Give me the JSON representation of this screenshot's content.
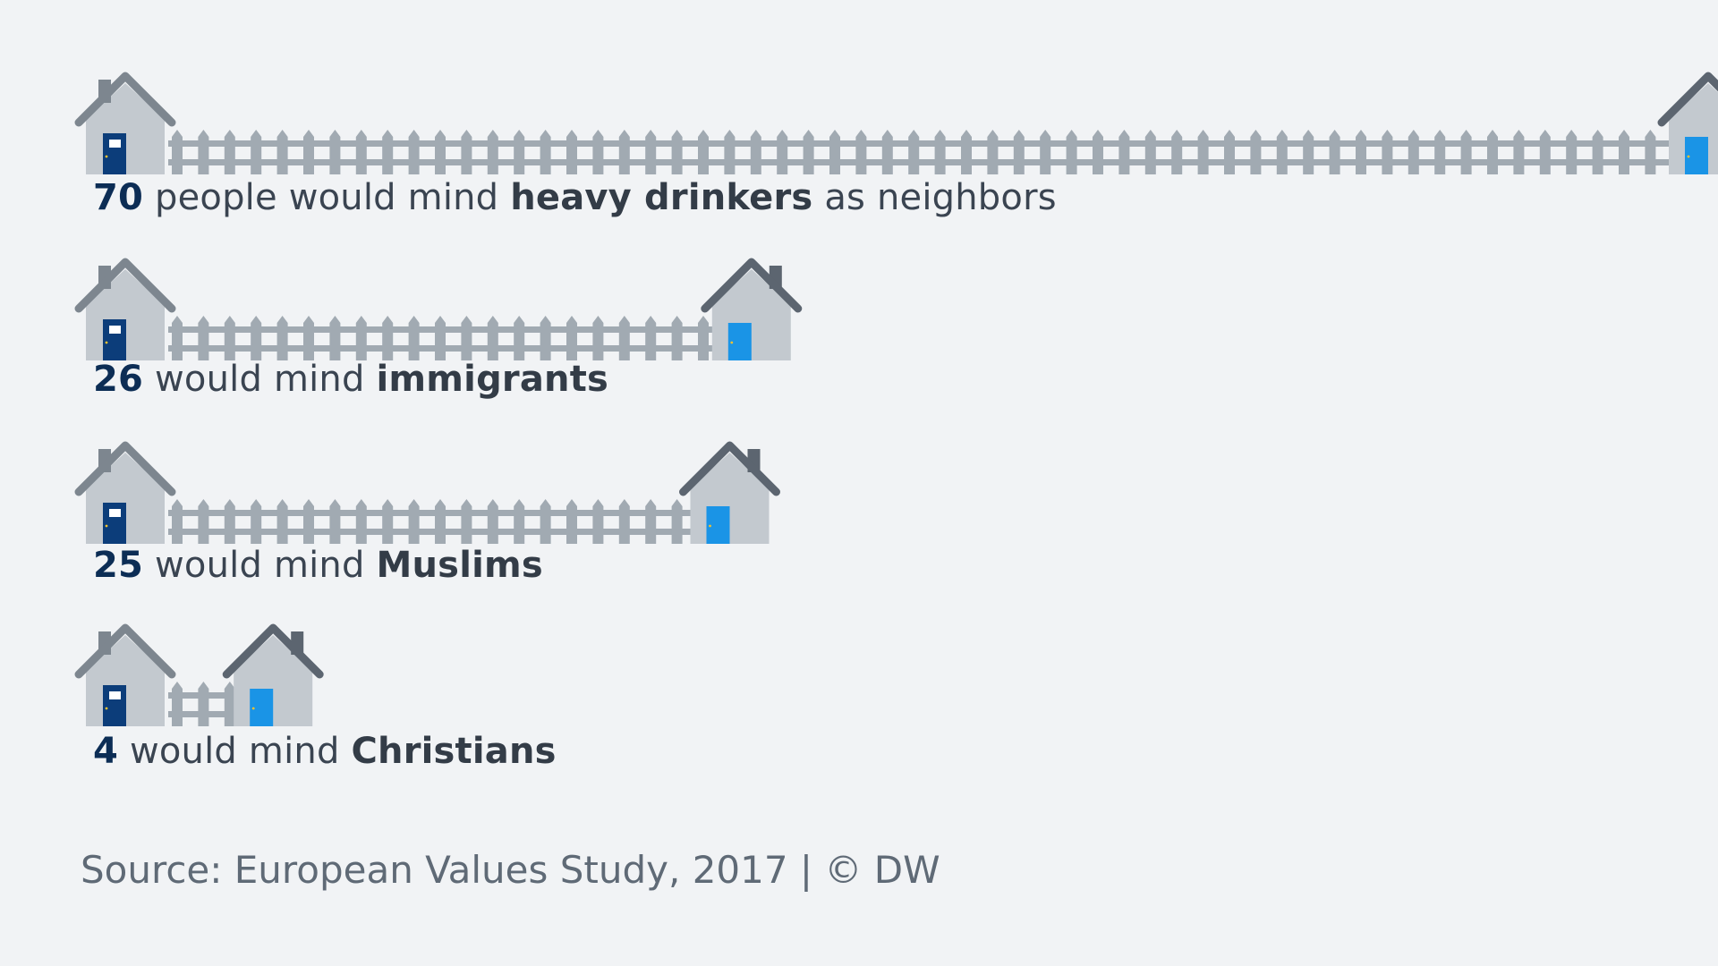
{
  "chart_data": {
    "type": "bar",
    "unit_note": "people who would mind the group as neighbors",
    "categories": [
      "heavy drinkers",
      "immigrants",
      "Muslims",
      "Christians"
    ],
    "values": [
      70,
      26,
      25,
      4
    ],
    "rows": [
      {
        "value": "70",
        "pre": " people would mind ",
        "group": "heavy drinkers",
        "post": " as neighbors"
      },
      {
        "value": "26",
        "pre": " would mind ",
        "group": "immigrants",
        "post": ""
      },
      {
        "value": "25",
        "pre": " would mind ",
        "group": "Muslims",
        "post": ""
      },
      {
        "value": "4",
        "pre": " would mind ",
        "group": "Christians",
        "post": ""
      }
    ],
    "icons": {
      "own_house": "house-icon",
      "neighbor_house": "neighbor-house-icon",
      "fence": "fence-icon"
    },
    "colors": {
      "background": "#f1f3f5",
      "house_wall": "#c3c9cf",
      "own_roof": "#7d868f",
      "neighbor_roof": "#5c6570",
      "own_door": "#0c3d7a",
      "neighbor_door": "#1a94e6",
      "fence": "#a1aab2",
      "value_text": "#0c2d55",
      "label_text": "#3a4451"
    }
  },
  "source": "Source: European Values Study, 2017 | © DW"
}
